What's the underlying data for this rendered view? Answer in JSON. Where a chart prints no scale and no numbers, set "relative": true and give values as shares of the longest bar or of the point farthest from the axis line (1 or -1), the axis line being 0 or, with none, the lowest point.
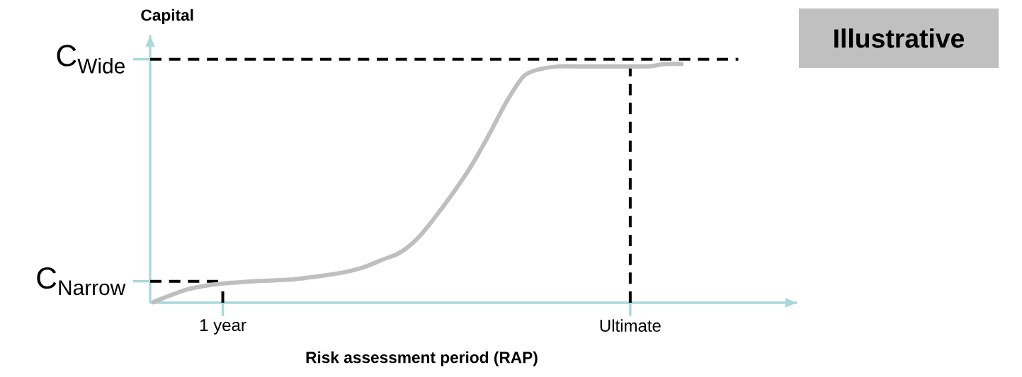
{
  "chart_data": {
    "type": "line",
    "relative": true,
    "xlabel": "Risk assessment period (RAP)",
    "ylabel": "Capital",
    "annotations": [
      "Illustrative"
    ],
    "categories": [
      null,
      null,
      null,
      null,
      "1 year",
      null,
      null,
      null,
      null,
      null,
      null,
      null,
      null,
      null,
      null,
      null,
      null,
      null,
      null,
      null,
      null,
      null,
      null,
      null,
      null,
      null,
      null,
      "Ultimate",
      null,
      null,
      null
    ],
    "series": [
      {
        "color": "#bfbfbf",
        "values": [
          0,
          0.03,
          0.056,
          0.071,
          0.081,
          0.086,
          0.091,
          0.094,
          0.098,
          0.107,
          0.117,
          0.13,
          0.15,
          0.18,
          0.21,
          0.27,
          0.36,
          0.46,
          0.57,
          0.7,
          0.84,
          0.95,
          0.98,
          0.99,
          0.99,
          0.99,
          0.99,
          0.99,
          0.99,
          1,
          1
        ]
      }
    ],
    "ref_lines": [
      {
        "axis": "y",
        "value": 0.09,
        "label": "C$_{Narrow}$",
        "color": "#000000",
        "line_style": "dashed"
      },
      {
        "axis": "y",
        "value": 1.02,
        "label": "C$_{Wide}$",
        "color": "#000000",
        "line_style": "dashed"
      },
      {
        "axis": "x",
        "value": "1 year",
        "color": "#000000",
        "line_style": "dashed"
      },
      {
        "axis": "x",
        "value": "Ultimate",
        "color": "#000000",
        "line_style": "dashed"
      }
    ]
  }
}
